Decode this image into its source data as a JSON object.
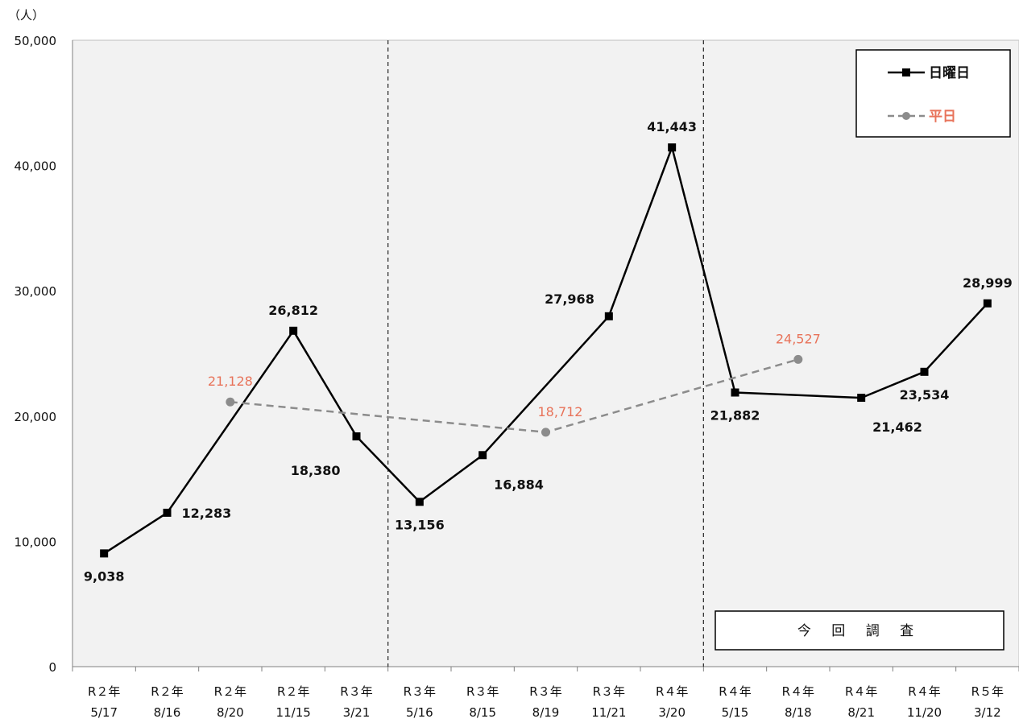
{
  "chart_data": {
    "type": "line",
    "unit_label": "（人）",
    "categories": [
      [
        "R２年",
        "5/17"
      ],
      [
        "R２年",
        "8/16"
      ],
      [
        "R２年",
        "8/20"
      ],
      [
        "R２年",
        "11/15"
      ],
      [
        "R３年",
        "3/21"
      ],
      [
        "R３年",
        "5/16"
      ],
      [
        "R３年",
        "8/15"
      ],
      [
        "R３年",
        "8/19"
      ],
      [
        "R３年",
        "11/21"
      ],
      [
        "R４年",
        "3/20"
      ],
      [
        "R４年",
        "5/15"
      ],
      [
        "R４年",
        "8/18"
      ],
      [
        "R４年",
        "8/21"
      ],
      [
        "R４年",
        "11/20"
      ],
      [
        "R５年",
        "3/12"
      ]
    ],
    "ylim": [
      0,
      50000
    ],
    "yticks": [
      0,
      10000,
      20000,
      30000,
      40000,
      50000
    ],
    "ytick_labels": [
      "0",
      "10,000",
      "20,000",
      "30,000",
      "40,000",
      "50,000"
    ],
    "grid": false,
    "legend_position": "top-right",
    "series": [
      {
        "name": "日曜日",
        "color": "#000000",
        "marker": "square",
        "line_style": "solid",
        "points": [
          {
            "index": 0,
            "value": 9038,
            "label": "9,038",
            "label_pos": "below"
          },
          {
            "index": 1,
            "value": 12283,
            "label": "12,283",
            "label_pos": "right"
          },
          {
            "index": 3,
            "value": 26812,
            "label": "26,812",
            "label_pos": "above"
          },
          {
            "index": 4,
            "value": 18380,
            "label": "18,380",
            "label_pos": "below-left"
          },
          {
            "index": 5,
            "value": 13156,
            "label": "13,156",
            "label_pos": "below"
          },
          {
            "index": 6,
            "value": 16884,
            "label": "16,884",
            "label_pos": "below-right"
          },
          {
            "index": 8,
            "value": 27968,
            "label": "27,968",
            "label_pos": "left"
          },
          {
            "index": 9,
            "value": 41443,
            "label": "41,443",
            "label_pos": "above"
          },
          {
            "index": 10,
            "value": 21882,
            "label": "21,882",
            "label_pos": "below"
          },
          {
            "index": 12,
            "value": 21462,
            "label": "21,462",
            "label_pos": "below-right"
          },
          {
            "index": 13,
            "value": 23534,
            "label": "23,534",
            "label_pos": "below"
          },
          {
            "index": 14,
            "value": 28999,
            "label": "28,999",
            "label_pos": "above"
          }
        ]
      },
      {
        "name": "平日",
        "color": "#8c8c8c",
        "label_color": "#e8735a",
        "marker": "circle",
        "line_style": "dashed",
        "points": [
          {
            "index": 2,
            "value": 21128,
            "label": "21,128",
            "label_pos": "above"
          },
          {
            "index": 7,
            "value": 18712,
            "label": "18,712",
            "label_pos": "above-right"
          },
          {
            "index": 11,
            "value": 24527,
            "label": "24,527",
            "label_pos": "above"
          }
        ]
      }
    ],
    "period_dividers_after_index": [
      4,
      9
    ],
    "annotation": "今 回 調 査"
  }
}
